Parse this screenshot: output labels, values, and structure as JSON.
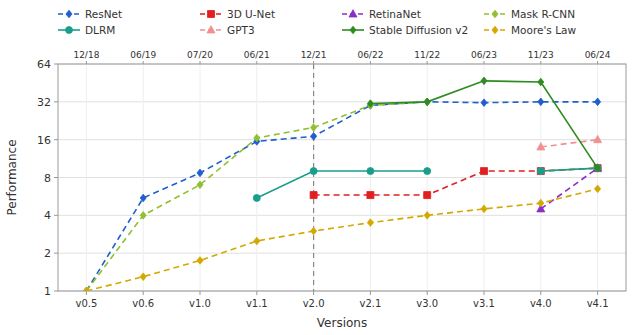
{
  "chart_data": {
    "type": "line",
    "categories": [
      "v0.5",
      "v0.6",
      "v1.0",
      "v1.1",
      "v2.0",
      "v2.1",
      "v3.0",
      "v3.1",
      "v4.0",
      "v4.1"
    ],
    "x2_categories": [
      "12/18",
      "06/19",
      "07/20",
      "06/21",
      "12/21",
      "06/22",
      "11/22",
      "06/23",
      "11/23",
      "06/24"
    ],
    "series": [
      {
        "name": "ResNet",
        "color": "#1f5fcc",
        "marker": "diamond",
        "line_style": "dashed",
        "values": [
          1.0,
          5.5,
          8.7,
          15.5,
          17.0,
          30.0,
          32.0,
          31.5,
          32.0,
          32.0
        ]
      },
      {
        "name": "3D U-Net",
        "color": "#e02020",
        "marker": "square",
        "line_style": "dashed",
        "values": [
          null,
          null,
          null,
          null,
          5.8,
          5.8,
          5.8,
          9.0,
          9.0,
          9.5
        ]
      },
      {
        "name": "RetinaNet",
        "color": "#8b2fc8",
        "marker": "triangle",
        "line_style": "dashed",
        "values": [
          null,
          null,
          null,
          null,
          null,
          null,
          null,
          null,
          4.5,
          9.5
        ]
      },
      {
        "name": "Mask R-CNN",
        "color": "#90c030",
        "marker": "diamond",
        "line_style": "dashed",
        "values": [
          1.0,
          4.0,
          7.0,
          16.5,
          20.0,
          30.0,
          32.0,
          null,
          9.0,
          9.5
        ]
      },
      {
        "name": "DLRM",
        "color": "#1a9e8c",
        "marker": "circle",
        "line_style": "solid",
        "values": [
          null,
          null,
          null,
          5.5,
          9.0,
          9.0,
          9.0,
          null,
          9.0,
          9.5
        ]
      },
      {
        "name": "GPT3",
        "color": "#f09090",
        "marker": "triangle",
        "line_style": "dashed",
        "values": [
          null,
          null,
          null,
          null,
          null,
          null,
          null,
          null,
          14.0,
          16.0
        ]
      },
      {
        "name": "Stable Diffusion v2",
        "color": "#2e8b20",
        "marker": "diamond",
        "line_style": "solid",
        "values": [
          null,
          null,
          null,
          null,
          null,
          31.0,
          32.0,
          47.0,
          46.0,
          9.5
        ]
      },
      {
        "name": "Moore's Law",
        "color": "#d4a800",
        "marker": "diamond",
        "line_style": "dashed",
        "values": [
          1.0,
          1.3,
          1.75,
          2.5,
          3.0,
          3.5,
          4.0,
          4.5,
          5.0,
          6.5
        ]
      }
    ],
    "vline_x": "v2.0",
    "x_label": "Versions",
    "y_label": "Performance",
    "log": "y",
    "ylim": [
      1,
      64
    ],
    "yticks": [
      1,
      2,
      4,
      8,
      16,
      32,
      64
    ],
    "grid": true,
    "legend": "top"
  }
}
